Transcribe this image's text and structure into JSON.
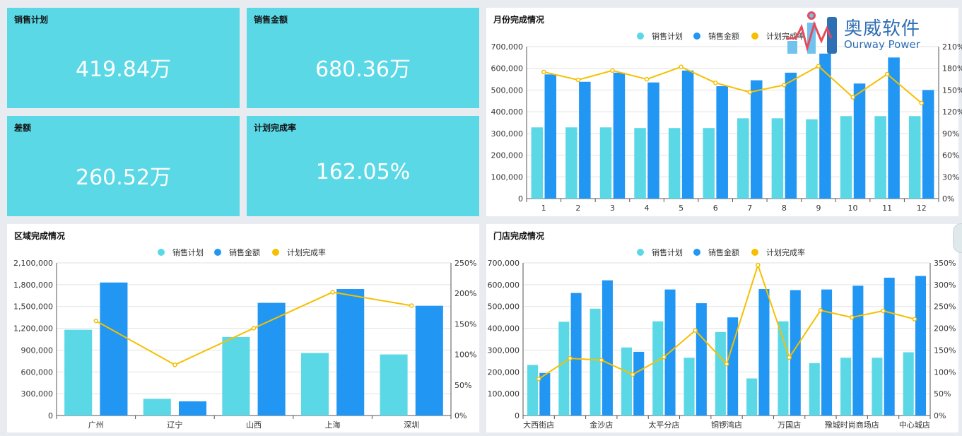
{
  "kpis": [
    {
      "label": "销售计划",
      "value": "419.84万"
    },
    {
      "label": "销售金额",
      "value": "680.36万"
    },
    {
      "label": "差额",
      "value": "260.52万"
    },
    {
      "label": "计划完成率",
      "value": "162.05%"
    }
  ],
  "logo": {
    "cn": "奥威软件",
    "en": "Ourway Power"
  },
  "colors": {
    "plan": "#5bd8e6",
    "amount": "#2196f3",
    "rate": "#f5c000",
    "kpi_bg": "#5bd8e6"
  },
  "chart_data": [
    {
      "type": "bar",
      "title": "月份完成情况",
      "legend": [
        "销售计划",
        "销售金额",
        "计划完成率"
      ],
      "categories": [
        "1",
        "2",
        "3",
        "4",
        "5",
        "6",
        "7",
        "8",
        "9",
        "10",
        "11",
        "12"
      ],
      "series": [
        {
          "name": "销售计划",
          "values": [
            328000,
            328000,
            328000,
            325000,
            325000,
            325000,
            370000,
            370000,
            365000,
            380000,
            380000,
            380000
          ]
        },
        {
          "name": "销售金额",
          "values": [
            572000,
            538000,
            580000,
            535000,
            590000,
            518000,
            545000,
            580000,
            668000,
            530000,
            650000,
            500000
          ]
        },
        {
          "name": "计划完成率",
          "axis": "right",
          "values": [
            1.75,
            1.64,
            1.77,
            1.65,
            1.82,
            1.6,
            1.47,
            1.57,
            1.83,
            1.4,
            1.72,
            1.32
          ]
        }
      ],
      "ylim": [
        0,
        700000
      ],
      "yticks": [
        "0",
        "100,000",
        "200,000",
        "300,000",
        "400,000",
        "500,000",
        "600,000",
        "700,000"
      ],
      "y2ticks": [
        "0%",
        "30%",
        "60%",
        "90%",
        "120%",
        "150%",
        "180%",
        "210%"
      ],
      "y2lim": [
        0,
        2.1
      ]
    },
    {
      "type": "bar",
      "title": "区域完成情况",
      "legend": [
        "销售计划",
        "销售金额",
        "计划完成率"
      ],
      "categories": [
        "广州",
        "辽宁",
        "山西",
        "上海",
        "深圳"
      ],
      "series": [
        {
          "name": "销售计划",
          "values": [
            1180000,
            230000,
            1080000,
            860000,
            840000
          ]
        },
        {
          "name": "销售金额",
          "values": [
            1830000,
            195000,
            1550000,
            1740000,
            1510000
          ]
        },
        {
          "name": "计划完成率",
          "axis": "right",
          "values": [
            1.55,
            0.83,
            1.43,
            2.02,
            1.8
          ]
        }
      ],
      "ylim": [
        0,
        2100000
      ],
      "yticks": [
        "0",
        "300,000",
        "600,000",
        "900,000",
        "1,200,000",
        "1,500,000",
        "1,800,000",
        "2,100,000"
      ],
      "y2ticks": [
        "0%",
        "50%",
        "100%",
        "150%",
        "200%",
        "250%"
      ],
      "y2lim": [
        0,
        2.5
      ]
    },
    {
      "type": "bar",
      "title": "门店完成情况",
      "legend": [
        "销售计划",
        "销售金额",
        "计划完成率"
      ],
      "categories": [
        "大西街店",
        "",
        "金沙店",
        "",
        "太平分店",
        "",
        "铜锣湾店",
        "",
        "万国店",
        "",
        "豫城时尚商场店",
        "",
        "中心城店"
      ],
      "series": [
        {
          "name": "销售计划",
          "values": [
            232000,
            430000,
            490000,
            312000,
            432000,
            265000,
            383000,
            170000,
            432000,
            240000,
            265000,
            265000,
            290000
          ]
        },
        {
          "name": "销售金额",
          "values": [
            195000,
            562000,
            620000,
            292000,
            578000,
            515000,
            450000,
            580000,
            575000,
            578000,
            595000,
            632000,
            640000
          ]
        },
        {
          "name": "计划完成率",
          "axis": "right",
          "values": [
            0.84,
            1.31,
            1.27,
            0.94,
            1.34,
            1.95,
            1.18,
            3.45,
            1.33,
            2.41,
            2.25,
            2.4,
            2.21
          ]
        }
      ],
      "ylim": [
        0,
        700000
      ],
      "yticks": [
        "0",
        "100,000",
        "200,000",
        "300,000",
        "400,000",
        "500,000",
        "600,000",
        "700,000"
      ],
      "y2ticks": [
        "0%",
        "50%",
        "100%",
        "150%",
        "200%",
        "250%",
        "300%",
        "350%"
      ],
      "y2lim": [
        0,
        3.5
      ]
    }
  ]
}
